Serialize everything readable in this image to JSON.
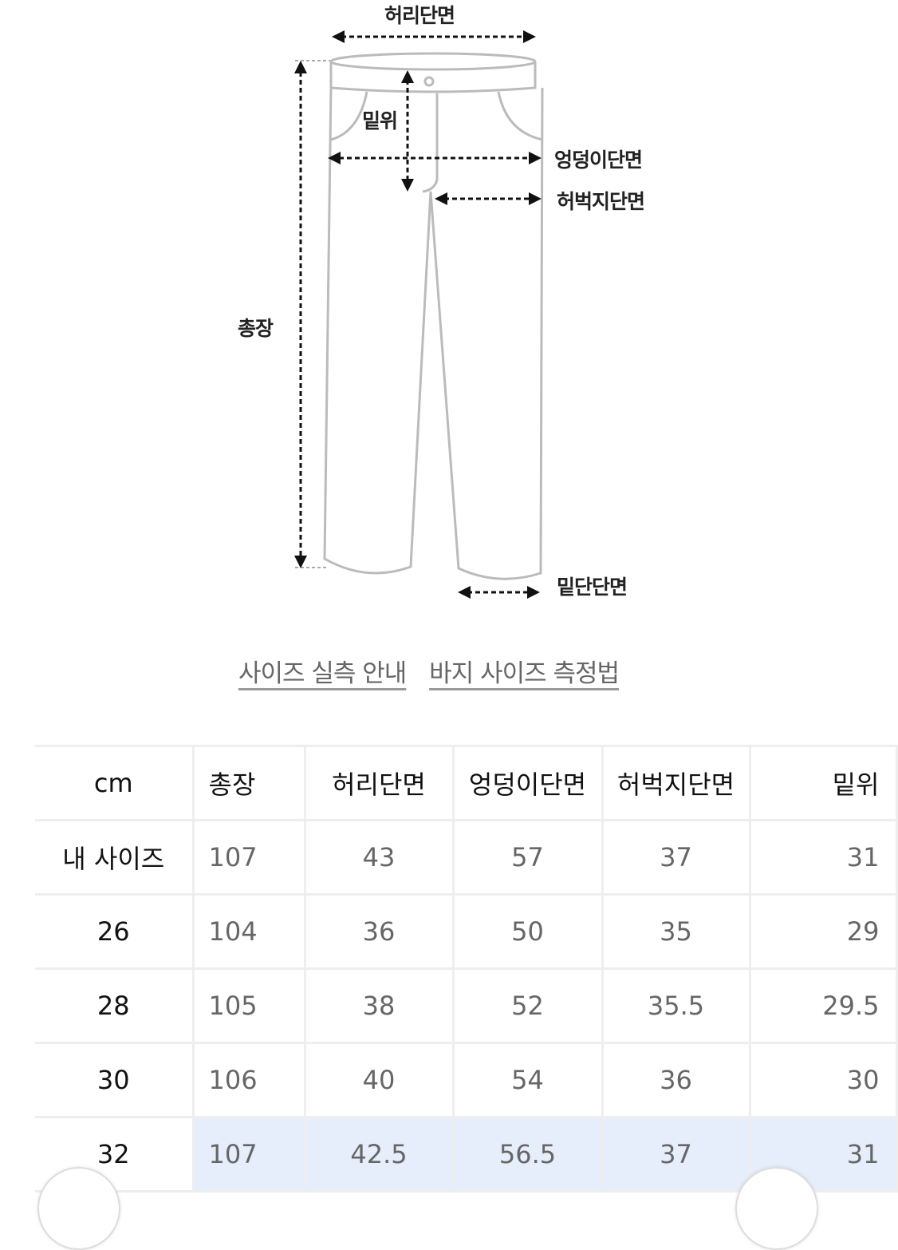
{
  "diagram": {
    "labels": {
      "waist": "허리단면",
      "rise": "밑위",
      "hip": "엉덩이단면",
      "thigh": "허벅지단면",
      "length": "총장",
      "hem": "밑단단면"
    }
  },
  "links": [
    "사이즈 실측 안내",
    "바지 사이즈 측정법"
  ],
  "table": {
    "headers": [
      "cm",
      "총장",
      "허리단면",
      "엉덩이단면",
      "허벅지단면",
      "밑위"
    ],
    "rows": [
      [
        "내 사이즈",
        "107",
        "43",
        "57",
        "37",
        "31"
      ],
      [
        "26",
        "104",
        "36",
        "50",
        "35",
        "29"
      ],
      [
        "28",
        "105",
        "38",
        "52",
        "35.5",
        "29.5"
      ],
      [
        "30",
        "106",
        "40",
        "54",
        "36",
        "30"
      ],
      [
        "32",
        "107",
        "42.5",
        "56.5",
        "37",
        "31"
      ]
    ],
    "highlight_color": "#e6edfb"
  }
}
